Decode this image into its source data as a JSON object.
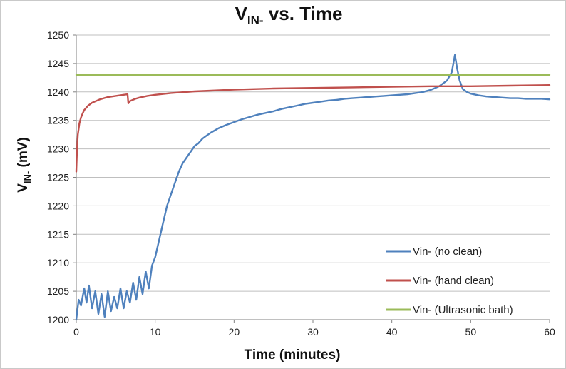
{
  "chart_data": {
    "type": "line",
    "title": "VIN- vs. Time",
    "title_parts": {
      "main": "V",
      "sub": "IN-",
      "rest": " vs. Time"
    },
    "xlabel": "Time (minutes)",
    "ylabel": "VIN- (mV)",
    "ylabel_parts": {
      "main": "V",
      "sub": "IN-",
      "rest": " (mV)"
    },
    "xlim": [
      0,
      60
    ],
    "ylim": [
      1200,
      1250
    ],
    "x_ticks": [
      0,
      10,
      20,
      30,
      40,
      50,
      60
    ],
    "y_ticks": [
      1200,
      1205,
      1210,
      1215,
      1220,
      1225,
      1230,
      1235,
      1240,
      1245,
      1250
    ],
    "grid": "horizontal",
    "legend_position": "bottom-right",
    "series": [
      {
        "name": "Vin- (no clean)",
        "color": "#4f81bd",
        "x": [
          0,
          0.3,
          0.6,
          1.0,
          1.3,
          1.6,
          2.0,
          2.4,
          2.8,
          3.2,
          3.6,
          4.0,
          4.4,
          4.8,
          5.2,
          5.6,
          6.0,
          6.4,
          6.8,
          7.2,
          7.6,
          8.0,
          8.4,
          8.8,
          9.2,
          9.6,
          10.0,
          10.5,
          11.0,
          11.5,
          12.0,
          12.5,
          13.0,
          13.5,
          14.0,
          14.5,
          15.0,
          15.5,
          16.0,
          16.5,
          17.0,
          17.5,
          18.0,
          19.0,
          20.0,
          21.0,
          22.0,
          23.0,
          24.0,
          25.0,
          26.0,
          27.0,
          28.0,
          29.0,
          30.0,
          31.0,
          32.0,
          33.0,
          34.0,
          35.0,
          36.0,
          37.0,
          38.0,
          39.0,
          40.0,
          41.0,
          42.0,
          43.0,
          44.0,
          45.0,
          46.0,
          47.0,
          47.6,
          48.0,
          48.3,
          48.6,
          49.0,
          49.5,
          50.0,
          51.0,
          52.0,
          53.0,
          54.0,
          55.0,
          56.0,
          57.0,
          58.0,
          59.0,
          60.0
        ],
        "values": [
          1200,
          1203.5,
          1202.5,
          1205.5,
          1203,
          1206,
          1202,
          1205,
          1201,
          1204.5,
          1200.5,
          1205,
          1201.5,
          1204,
          1202,
          1205.5,
          1202,
          1205,
          1203,
          1206.5,
          1203.5,
          1207.5,
          1204.5,
          1208.5,
          1205.5,
          1209.5,
          1211,
          1214,
          1217,
          1220,
          1222,
          1224,
          1226,
          1227.5,
          1228.5,
          1229.5,
          1230.5,
          1231,
          1231.8,
          1232.3,
          1232.8,
          1233.2,
          1233.6,
          1234.2,
          1234.7,
          1235.2,
          1235.6,
          1236,
          1236.3,
          1236.6,
          1237,
          1237.3,
          1237.6,
          1237.9,
          1238.1,
          1238.3,
          1238.5,
          1238.6,
          1238.8,
          1238.9,
          1239,
          1239.1,
          1239.2,
          1239.3,
          1239.4,
          1239.5,
          1239.6,
          1239.8,
          1240,
          1240.4,
          1241,
          1242,
          1243.5,
          1246.5,
          1244,
          1242,
          1240.5,
          1240,
          1239.7,
          1239.4,
          1239.2,
          1239.1,
          1239,
          1238.9,
          1238.9,
          1238.8,
          1238.8,
          1238.8,
          1238.7
        ]
      },
      {
        "name": "Vin- (hand clean)",
        "color": "#c0504d",
        "x": [
          0,
          0.1,
          0.2,
          0.4,
          0.6,
          0.8,
          1.0,
          1.5,
          2.0,
          3.0,
          4.0,
          5.0,
          6.0,
          6.5,
          6.6,
          6.8,
          7.5,
          8.0,
          9.0,
          10.0,
          12.0,
          15.0,
          20.0,
          25.0,
          30.0,
          35.0,
          40.0,
          45.0,
          50.0,
          55.0,
          60.0
        ],
        "values": [
          1226,
          1230,
          1232.5,
          1234.5,
          1235.5,
          1236.2,
          1236.8,
          1237.6,
          1238.1,
          1238.7,
          1239.1,
          1239.3,
          1239.5,
          1239.6,
          1238,
          1238.4,
          1238.8,
          1239,
          1239.3,
          1239.5,
          1239.8,
          1240.1,
          1240.4,
          1240.6,
          1240.7,
          1240.8,
          1240.9,
          1241,
          1241,
          1241.1,
          1241.2
        ]
      },
      {
        "name": "Vin- (Ultrasonic bath)",
        "color": "#9bbb59",
        "x": [
          0,
          60
        ],
        "values": [
          1243,
          1243
        ]
      }
    ]
  }
}
